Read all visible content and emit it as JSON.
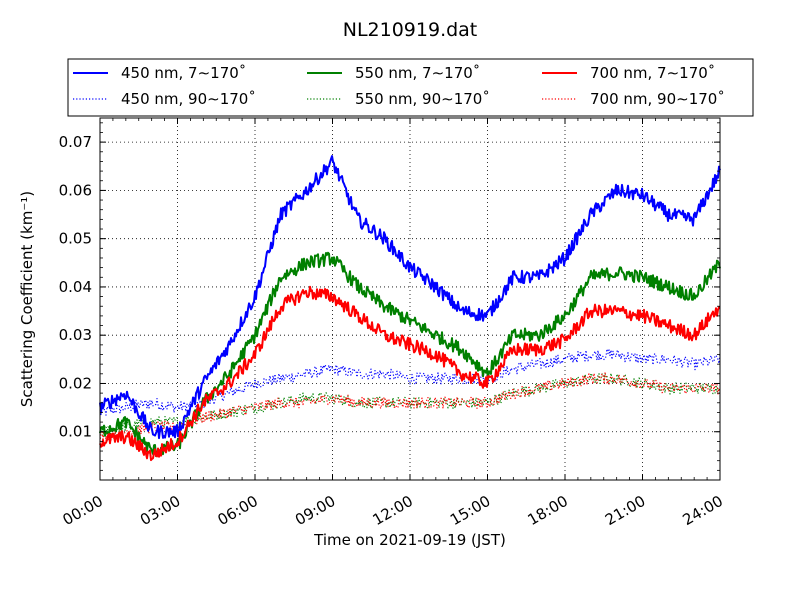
{
  "chart_data": {
    "type": "line",
    "title": "NL210919.dat",
    "xlabel": "Time on 2021-09-19 (JST)",
    "ylabel": "Scattering Coefficient (km⁻¹)",
    "xlim": [
      "00:00",
      "24:00"
    ],
    "ylim": [
      0.0,
      0.075
    ],
    "x_ticks": [
      "00:00",
      "03:00",
      "06:00",
      "09:00",
      "12:00",
      "15:00",
      "18:00",
      "21:00",
      "24:00"
    ],
    "y_ticks": [
      "0.01",
      "0.02",
      "0.03",
      "0.04",
      "0.05",
      "0.06",
      "0.07"
    ],
    "grid": true,
    "legend_position": "top",
    "x": [
      "00:00",
      "01:00",
      "02:00",
      "03:00",
      "04:00",
      "05:00",
      "06:00",
      "07:00",
      "08:00",
      "09:00",
      "10:00",
      "11:00",
      "12:00",
      "13:00",
      "14:00",
      "15:00",
      "16:00",
      "17:00",
      "18:00",
      "19:00",
      "20:00",
      "21:00",
      "22:00",
      "23:00",
      "24:00"
    ],
    "series": [
      {
        "name": "450 nm, 7∼170˚",
        "color": "#0000ff",
        "style": "solid",
        "values": [
          0.015,
          0.018,
          0.01,
          0.01,
          0.02,
          0.028,
          0.038,
          0.055,
          0.06,
          0.066,
          0.054,
          0.05,
          0.044,
          0.04,
          0.035,
          0.034,
          0.042,
          0.042,
          0.046,
          0.055,
          0.06,
          0.059,
          0.055,
          0.054,
          0.064
        ]
      },
      {
        "name": "450 nm, 90∼170˚",
        "color": "#0000ff",
        "style": "dotted",
        "values": [
          0.014,
          0.015,
          0.016,
          0.015,
          0.016,
          0.018,
          0.02,
          0.021,
          0.022,
          0.023,
          0.022,
          0.022,
          0.021,
          0.021,
          0.021,
          0.021,
          0.023,
          0.024,
          0.025,
          0.026,
          0.026,
          0.025,
          0.025,
          0.024,
          0.025
        ]
      },
      {
        "name": "550 nm, 7∼170˚",
        "color": "#008000",
        "style": "solid",
        "values": [
          0.01,
          0.012,
          0.006,
          0.007,
          0.016,
          0.022,
          0.03,
          0.042,
          0.045,
          0.046,
          0.04,
          0.036,
          0.033,
          0.03,
          0.027,
          0.022,
          0.03,
          0.03,
          0.034,
          0.042,
          0.043,
          0.042,
          0.04,
          0.038,
          0.045
        ]
      },
      {
        "name": "550 nm, 90∼170˚",
        "color": "#008000",
        "style": "dotted",
        "values": [
          0.01,
          0.011,
          0.012,
          0.012,
          0.013,
          0.014,
          0.015,
          0.016,
          0.017,
          0.017,
          0.016,
          0.016,
          0.016,
          0.016,
          0.016,
          0.016,
          0.018,
          0.019,
          0.02,
          0.021,
          0.021,
          0.02,
          0.019,
          0.019,
          0.019
        ]
      },
      {
        "name": "700 nm, 7∼170˚",
        "color": "#ff0000",
        "style": "solid",
        "values": [
          0.008,
          0.009,
          0.005,
          0.008,
          0.016,
          0.02,
          0.026,
          0.036,
          0.039,
          0.038,
          0.034,
          0.03,
          0.028,
          0.026,
          0.022,
          0.02,
          0.027,
          0.027,
          0.029,
          0.035,
          0.035,
          0.034,
          0.032,
          0.03,
          0.036
        ]
      },
      {
        "name": "700 nm, 90∼170˚",
        "color": "#ff0000",
        "style": "dotted",
        "values": [
          0.009,
          0.01,
          0.011,
          0.011,
          0.013,
          0.014,
          0.015,
          0.016,
          0.016,
          0.017,
          0.016,
          0.016,
          0.016,
          0.016,
          0.016,
          0.016,
          0.018,
          0.019,
          0.02,
          0.021,
          0.021,
          0.02,
          0.019,
          0.019,
          0.019
        ]
      }
    ]
  }
}
